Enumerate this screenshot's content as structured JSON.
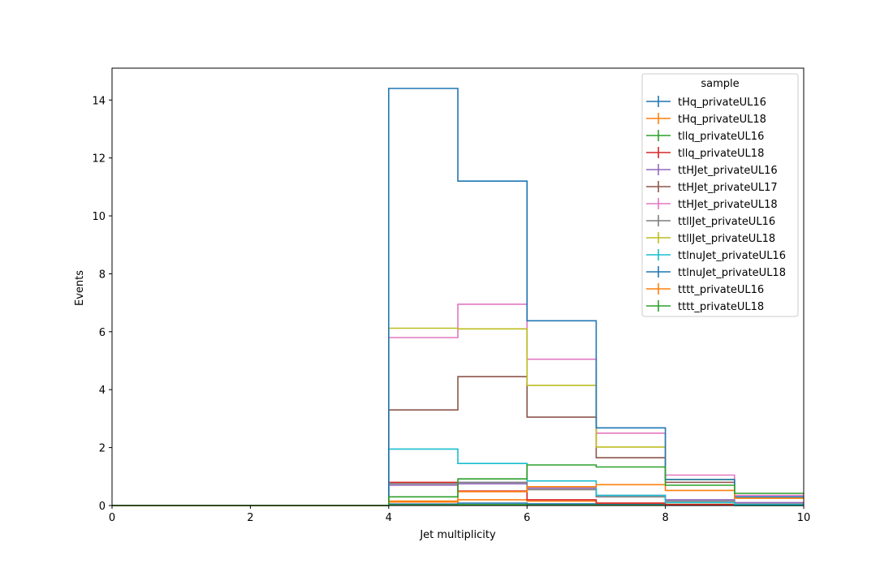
{
  "chart_data": {
    "type": "line",
    "drawstyle": "step-histogram",
    "xlabel": "Jet multiplicity",
    "ylabel": "Events",
    "xlim": [
      0,
      10
    ],
    "ylim": [
      0,
      15.1
    ],
    "x_ticks": [
      "0",
      "2",
      "4",
      "6",
      "8",
      "10"
    ],
    "y_ticks": [
      "0",
      "2",
      "4",
      "6",
      "8",
      "10",
      "12",
      "14"
    ],
    "bin_edges": [
      0,
      1,
      2,
      3,
      4,
      5,
      6,
      7,
      8,
      9,
      10
    ],
    "grid": false,
    "legend": {
      "title": "sample",
      "placement": "top-right"
    },
    "series": [
      {
        "name": "tHq_privateUL16",
        "color": "#1f77b4",
        "values": [
          0,
          0,
          0,
          0,
          0.05,
          0.08,
          0.06,
          0.04,
          0.02,
          0.01
        ]
      },
      {
        "name": "tHq_privateUL18",
        "color": "#ff7f0e",
        "values": [
          0,
          0,
          0,
          0,
          0.15,
          0.2,
          0.15,
          0.08,
          0.04,
          0.02
        ]
      },
      {
        "name": "tllq_privateUL16",
        "color": "#2ca02c",
        "values": [
          0,
          0,
          0,
          0,
          0.02,
          0.03,
          0.02,
          0.01,
          0.01,
          0.0
        ]
      },
      {
        "name": "tllq_privateUL18",
        "color": "#d62728",
        "values": [
          0,
          0,
          0,
          0,
          0.8,
          0.5,
          0.2,
          0.08,
          0.03,
          0.01
        ]
      },
      {
        "name": "ttHJet_privateUL16",
        "color": "#9467bd",
        "values": [
          0,
          0,
          0,
          0,
          0.7,
          0.75,
          0.6,
          0.35,
          0.2,
          0.1
        ]
      },
      {
        "name": "ttHJet_privateUL17",
        "color": "#8c564b",
        "values": [
          0,
          0,
          0,
          0,
          3.3,
          4.45,
          3.05,
          1.65,
          0.8,
          0.3
        ]
      },
      {
        "name": "ttHJet_privateUL18",
        "color": "#e377c2",
        "values": [
          0,
          0,
          0,
          0,
          5.8,
          6.95,
          5.05,
          2.5,
          1.05,
          0.35
        ]
      },
      {
        "name": "ttllJet_privateUL16",
        "color": "#7f7f7f",
        "values": [
          0,
          0,
          0,
          0,
          0.75,
          0.8,
          0.55,
          0.3,
          0.15,
          0.05
        ]
      },
      {
        "name": "ttllJet_privateUL18",
        "color": "#bcbd22",
        "values": [
          0,
          0,
          0,
          0,
          6.12,
          6.1,
          4.15,
          2.02,
          0.9,
          0.3
        ]
      },
      {
        "name": "ttlnuJet_privateUL16",
        "color": "#17becf",
        "values": [
          0,
          0,
          0,
          0,
          1.95,
          1.45,
          0.85,
          0.35,
          0.1,
          0.03
        ]
      },
      {
        "name": "ttlnuJet_privateUL18",
        "color": "#1f77b4",
        "values": [
          0,
          0,
          0,
          0,
          14.4,
          11.2,
          6.38,
          2.68,
          0.9,
          0.3
        ]
      },
      {
        "name": "tttt_privateUL16",
        "color": "#ff7f0e",
        "values": [
          0,
          0,
          0,
          0,
          0.12,
          0.48,
          0.65,
          0.72,
          0.52,
          0.25
        ]
      },
      {
        "name": "tttt_privateUL18",
        "color": "#2ca02c",
        "values": [
          0,
          0,
          0,
          0,
          0.3,
          0.92,
          1.4,
          1.33,
          0.7,
          0.42
        ]
      }
    ]
  }
}
